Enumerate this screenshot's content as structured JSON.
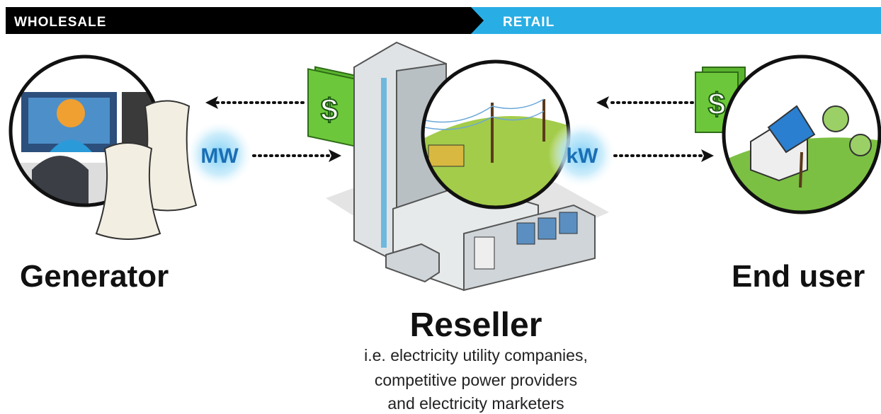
{
  "header": {
    "left": "WHOLESALE",
    "right": "RETAIL"
  },
  "flows": {
    "wholesale_unit": "MW",
    "retail_unit": "kW"
  },
  "money_labels": [
    "$",
    "$",
    "$"
  ],
  "nodes": [
    {
      "label": "Generator"
    },
    {
      "label": "Reseller",
      "description": [
        "i.e. electricity utility companies,",
        "competitive power providers",
        "and electricity marketers"
      ]
    },
    {
      "label": "End user"
    }
  ]
}
